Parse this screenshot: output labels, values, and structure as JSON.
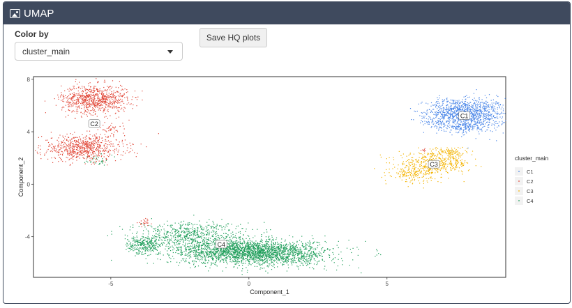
{
  "header": {
    "title": "UMAP",
    "icon": "image-icon"
  },
  "controls": {
    "color_by_label": "Color by",
    "color_by_value": "cluster_main",
    "save_label": "Save HQ plots"
  },
  "chart_data": {
    "type": "scatter",
    "xlabel": "Component_1",
    "ylabel": "Component_2",
    "xlim": [
      -7.8,
      9.3
    ],
    "ylim": [
      -7.1,
      8.2
    ],
    "xticks": [
      -5,
      0,
      5
    ],
    "yticks": [
      -4,
      0,
      4,
      8
    ],
    "grid": false,
    "legend": {
      "title": "cluster_main",
      "placement": "right"
    },
    "series": [
      {
        "name": "C1",
        "color": "#4a86e8",
        "label_pos": [
          7.8,
          5.2
        ],
        "clusters": [
          {
            "center": [
              8.2,
              5.3
            ],
            "spread": [
              0.55,
              0.65
            ],
            "n": 700
          },
          {
            "center": [
              7.4,
              5.7
            ],
            "spread": [
              0.5,
              0.45
            ],
            "n": 350
          },
          {
            "center": [
              6.8,
              5.0
            ],
            "spread": [
              0.35,
              0.3
            ],
            "n": 100
          },
          {
            "center": [
              7.6,
              4.4
            ],
            "spread": [
              0.4,
              0.2
            ],
            "n": 120
          }
        ]
      },
      {
        "name": "C2",
        "color": "#e24a3b",
        "label_pos": [
          -5.6,
          4.6
        ],
        "clusters": [
          {
            "center": [
              -5.6,
              6.5
            ],
            "spread": [
              0.6,
              0.55
            ],
            "n": 800
          },
          {
            "center": [
              -6.0,
              2.8
            ],
            "spread": [
              0.75,
              0.5
            ],
            "n": 700
          },
          {
            "center": [
              -5.0,
              4.2
            ],
            "spread": [
              0.2,
              0.25
            ],
            "n": 40
          },
          {
            "center": [
              -3.8,
              -2.9
            ],
            "spread": [
              0.12,
              0.12
            ],
            "n": 25
          },
          {
            "center": [
              6.3,
              2.6
            ],
            "spread": [
              0.08,
              0.08
            ],
            "n": 8
          }
        ]
      },
      {
        "name": "C3",
        "color": "#f4b400",
        "label_pos": [
          6.7,
          1.5
        ],
        "clusters": [
          {
            "center": [
              6.7,
              1.6
            ],
            "spread": [
              0.65,
              0.4
            ],
            "n": 450
          },
          {
            "center": [
              5.9,
              0.8
            ],
            "spread": [
              0.4,
              0.3
            ],
            "n": 150
          },
          {
            "center": [
              7.3,
              2.5
            ],
            "spread": [
              0.3,
              0.2
            ],
            "n": 90
          }
        ]
      },
      {
        "name": "C4",
        "color": "#1f9e5a",
        "label_pos": [
          -1.0,
          -4.6
        ],
        "clusters": [
          {
            "center": [
              -0.3,
              -5.1
            ],
            "spread": [
              1.3,
              0.45
            ],
            "n": 1600
          },
          {
            "center": [
              -2.2,
              -3.8
            ],
            "spread": [
              1.0,
              0.5
            ],
            "n": 600
          },
          {
            "center": [
              -3.8,
              -4.6
            ],
            "spread": [
              0.3,
              0.35
            ],
            "n": 250
          },
          {
            "center": [
              0.8,
              -5.3
            ],
            "spread": [
              1.2,
              0.5
            ],
            "n": 900
          },
          {
            "center": [
              -5.5,
              1.9
            ],
            "spread": [
              0.2,
              0.2
            ],
            "n": 30
          }
        ]
      }
    ]
  }
}
